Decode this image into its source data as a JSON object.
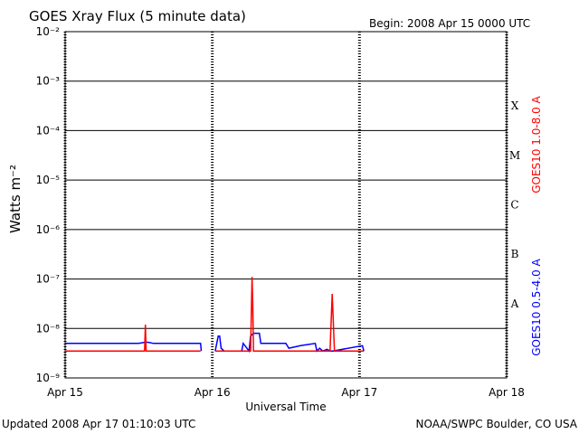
{
  "chart_data": {
    "type": "line",
    "title": "GOES Xray Flux (5 minute data)",
    "subtitle": "Begin:  2008 Apr 15 0000 UTC",
    "y_label": "Watts m⁻²",
    "x_label": "Universal Time",
    "footer_left": "Updated 2008 Apr 17 01:10:03 UTC",
    "footer_right": "NOAA/SWPC Boulder, CO USA",
    "log_y": true,
    "grid": true,
    "xlim": [
      0,
      3
    ],
    "xticks": [
      {
        "value": 0,
        "label": "Apr 15"
      },
      {
        "value": 1,
        "label": "Apr 16"
      },
      {
        "value": 2,
        "label": "Apr 17"
      },
      {
        "value": 3,
        "label": "Apr 18"
      }
    ],
    "ylim": [
      1e-09,
      0.01
    ],
    "yticks": [
      {
        "value": 1e-09,
        "label": "10⁻⁹"
      },
      {
        "value": 1e-08,
        "label": "10⁻⁸"
      },
      {
        "value": 1e-07,
        "label": "10⁻⁷"
      },
      {
        "value": 1e-06,
        "label": "10⁻⁶"
      },
      {
        "value": 1e-05,
        "label": "10⁻⁵"
      },
      {
        "value": 0.0001,
        "label": "10⁻⁴"
      },
      {
        "value": 0.001,
        "label": "10⁻³"
      },
      {
        "value": 0.01,
        "label": "10⁻²"
      }
    ],
    "flare_classes": [
      {
        "label": "A",
        "value": 1e-08
      },
      {
        "label": "B",
        "value": 1e-07
      },
      {
        "label": "C",
        "value": 1e-06
      },
      {
        "label": "M",
        "value": 1e-05
      },
      {
        "label": "X",
        "value": 0.0001
      }
    ],
    "series": [
      {
        "name": "GOES10 1.0-8.0 A",
        "color": "#ff0000",
        "x": [
          0,
          0.54,
          0.545,
          0.55,
          0.92,
          0.97,
          1.02,
          1.26,
          1.27,
          1.275,
          1.28,
          1.8,
          1.815,
          1.83,
          2.03
        ],
        "values": [
          3.5e-09,
          3.5e-09,
          1.2e-08,
          3.5e-09,
          3.5e-09,
          null,
          3.5e-09,
          3.5e-09,
          1.1e-07,
          3e-08,
          3.5e-09,
          3.5e-09,
          5e-08,
          3.5e-09,
          3.5e-09
        ]
      },
      {
        "name": "GOES10 0.5-4.0 A",
        "color": "#0000ff",
        "x": [
          0,
          0.5,
          0.55,
          0.57,
          0.6,
          0.92,
          0.925,
          0.97,
          1.02,
          1.04,
          1.05,
          1.06,
          1.08,
          1.2,
          1.21,
          1.25,
          1.26,
          1.28,
          1.32,
          1.33,
          1.5,
          1.52,
          1.6,
          1.7,
          1.71,
          1.73,
          1.75,
          1.78,
          1.8,
          1.82,
          2.02,
          2.03
        ],
        "values": [
          5e-09,
          5e-09,
          5.3e-09,
          5.2e-09,
          5e-09,
          5e-09,
          3.5e-09,
          null,
          3.5e-09,
          7e-09,
          7e-09,
          4e-09,
          3.5e-09,
          3.5e-09,
          5e-09,
          3.5e-09,
          7e-09,
          8e-09,
          8e-09,
          5e-09,
          5e-09,
          4e-09,
          4.5e-09,
          5e-09,
          3.5e-09,
          4e-09,
          3.5e-09,
          3.8e-09,
          3.5e-09,
          3.5e-09,
          4.5e-09,
          3.5e-09
        ]
      }
    ]
  }
}
